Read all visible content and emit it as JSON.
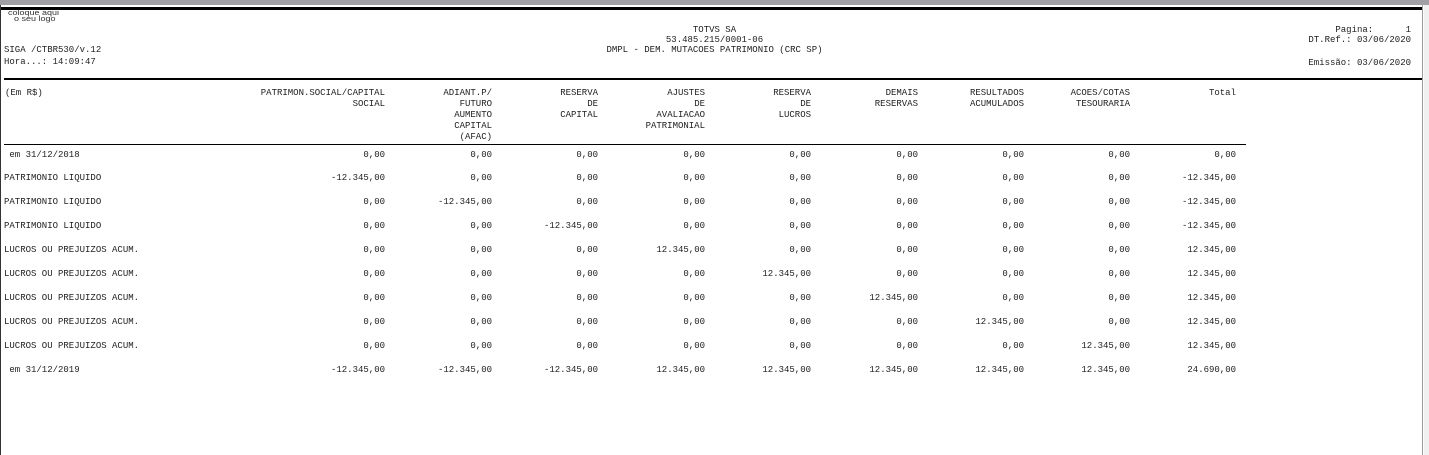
{
  "header": {
    "logo_text": "coloque aqui o seu logo",
    "company": "TOTVS SA",
    "cnpj": "53.485.215/0001-06",
    "title": "DMPL - DEM. MUTACOES PATRIMONIO (CRC SP)",
    "program": "SIGA /CTBR530/v.12",
    "time": "Hora...: 14:09:47",
    "page": "Pagina:      1",
    "dt_ref": "DT.Ref.: 03/06/2020",
    "emissao": "Emissão: 03/06/2020"
  },
  "table": {
    "first_header": "(Em R$)",
    "columns": [
      "PATRIMON.SOCIAL/CAPITAL\nSOCIAL",
      "ADIANT.P/\nFUTURO\nAUMENTO\nCAPITAL\n(AFAC)",
      "RESERVA\nDE\nCAPITAL",
      "AJUSTES\nDE\nAVALIACAO\nPATRIMONIAL",
      "RESERVA\nDE\nLUCROS",
      "DEMAIS\nRESERVAS",
      "RESULTADOS\nACUMULADOS",
      "ACOES/COTAS\nTESOURARIA",
      "Total"
    ],
    "rows": [
      {
        "label": " em 31/12/2018",
        "values": [
          "0,00",
          "0,00",
          "0,00",
          "0,00",
          "0,00",
          "0,00",
          "0,00",
          "0,00",
          "0,00"
        ]
      },
      {
        "label": "PATRIMONIO LIQUIDO",
        "values": [
          "-12.345,00",
          "0,00",
          "0,00",
          "0,00",
          "0,00",
          "0,00",
          "0,00",
          "0,00",
          "-12.345,00"
        ]
      },
      {
        "label": "PATRIMONIO LIQUIDO",
        "values": [
          "0,00",
          "-12.345,00",
          "0,00",
          "0,00",
          "0,00",
          "0,00",
          "0,00",
          "0,00",
          "-12.345,00"
        ]
      },
      {
        "label": "PATRIMONIO LIQUIDO",
        "values": [
          "0,00",
          "0,00",
          "-12.345,00",
          "0,00",
          "0,00",
          "0,00",
          "0,00",
          "0,00",
          "-12.345,00"
        ]
      },
      {
        "label": "LUCROS OU PREJUIZOS ACUM.",
        "values": [
          "0,00",
          "0,00",
          "0,00",
          "12.345,00",
          "0,00",
          "0,00",
          "0,00",
          "0,00",
          "12.345,00"
        ]
      },
      {
        "label": "LUCROS OU PREJUIZOS ACUM.",
        "values": [
          "0,00",
          "0,00",
          "0,00",
          "0,00",
          "12.345,00",
          "0,00",
          "0,00",
          "0,00",
          "12.345,00"
        ]
      },
      {
        "label": "LUCROS OU PREJUIZOS ACUM.",
        "values": [
          "0,00",
          "0,00",
          "0,00",
          "0,00",
          "0,00",
          "12.345,00",
          "0,00",
          "0,00",
          "12.345,00"
        ]
      },
      {
        "label": "LUCROS OU PREJUIZOS ACUM.",
        "values": [
          "0,00",
          "0,00",
          "0,00",
          "0,00",
          "0,00",
          "0,00",
          "12.345,00",
          "0,00",
          "12.345,00"
        ]
      },
      {
        "label": "LUCROS OU PREJUIZOS ACUM.",
        "values": [
          "0,00",
          "0,00",
          "0,00",
          "0,00",
          "0,00",
          "0,00",
          "0,00",
          "12.345,00",
          "12.345,00"
        ]
      },
      {
        "label": " em 31/12/2019",
        "values": [
          "-12.345,00",
          "-12.345,00",
          "-12.345,00",
          "12.345,00",
          "12.345,00",
          "12.345,00",
          "12.345,00",
          "12.345,00",
          "24.690,00"
        ]
      }
    ]
  }
}
